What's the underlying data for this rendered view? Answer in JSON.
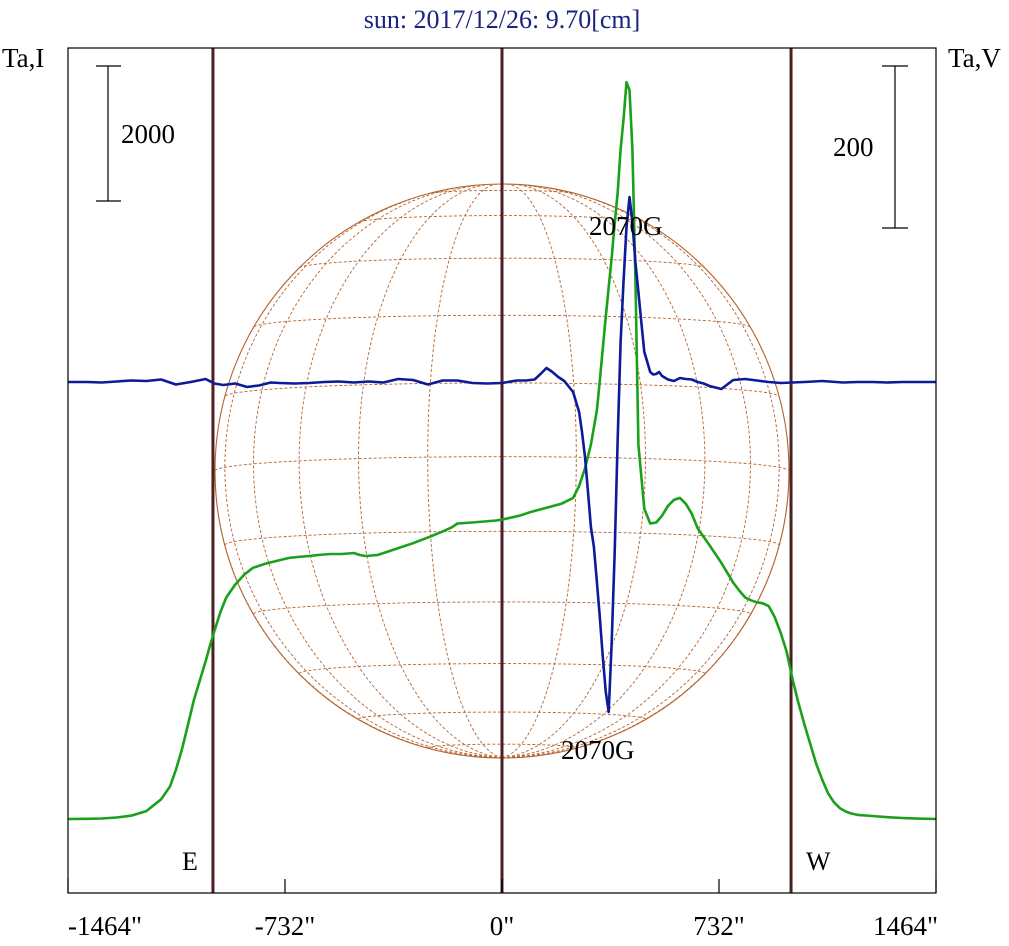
{
  "chart_data": {
    "type": "line",
    "title": "sun: 2017/12/26: 9.70[cm]",
    "title_color": "#1a237e",
    "left_axis_label": "Ta,I",
    "right_axis_label": "Ta,V",
    "left_scale_label": "2000",
    "right_scale_label": "200",
    "xlim": [
      -1464,
      1464
    ],
    "x_ticks": [
      {
        "value": -1464,
        "label": "-1464\""
      },
      {
        "value": -732,
        "label": "-732\""
      },
      {
        "value": 0,
        "label": "0\""
      },
      {
        "value": 732,
        "label": "732\""
      },
      {
        "value": 1464,
        "label": "1464\""
      }
    ],
    "limb_labels": {
      "east": "E",
      "west": "W"
    },
    "vertical_markers": [
      -975,
      0,
      975
    ],
    "annotations": [
      {
        "text": "2070G",
        "x": 450,
        "near": "stokes-v-peak"
      },
      {
        "text": "2070G",
        "x": 360,
        "near": "stokes-v-trough"
      }
    ],
    "grid": false,
    "colors": {
      "intensity": "#1aa01a",
      "polarization": "#0d1a99",
      "markers": "#4a2020",
      "disk": "#b5652e",
      "axis": "#000000"
    },
    "series": [
      {
        "key": "intensity",
        "x": [
          -1464,
          -1400,
          -1350,
          -1300,
          -1250,
          -1200,
          -1150,
          -1120,
          -1100,
          -1080,
          -1060,
          -1040,
          -1020,
          -1000,
          -985,
          -970,
          -950,
          -930,
          -900,
          -870,
          -840,
          -800,
          -760,
          -720,
          -690,
          -650,
          -620,
          -580,
          -540,
          -500,
          -480,
          -460,
          -420,
          -380,
          -340,
          -300,
          -240,
          -200,
          -170,
          -150,
          -100,
          -60,
          -20,
          0,
          30,
          60,
          100,
          150,
          200,
          240,
          260,
          280,
          300,
          320,
          330,
          340,
          350,
          360,
          370,
          380,
          390,
          400,
          410,
          420,
          430,
          440,
          450,
          460,
          480,
          500,
          520,
          540,
          560,
          580,
          600,
          620,
          640,
          660,
          700,
          740,
          780,
          800,
          820,
          840,
          860,
          880,
          900,
          920,
          940,
          960,
          980,
          1000,
          1020,
          1040,
          1060,
          1080,
          1100,
          1120,
          1140,
          1160,
          1180,
          1200,
          1250,
          1300,
          1350,
          1400,
          1464
        ],
        "y": [
          0.5,
          2,
          5,
          15,
          35,
          80,
          200,
          330,
          500,
          700,
          950,
          1200,
          1400,
          1600,
          1760,
          1910,
          2100,
          2250,
          2380,
          2480,
          2550,
          2590,
          2620,
          2650,
          2660,
          2670,
          2680,
          2690,
          2690,
          2700,
          2680,
          2670,
          2680,
          2720,
          2760,
          2800,
          2870,
          2920,
          2960,
          3000,
          3010,
          3020,
          3030,
          3040,
          3060,
          3080,
          3120,
          3160,
          3200,
          3260,
          3380,
          3560,
          3800,
          4150,
          4450,
          4780,
          5100,
          5400,
          5700,
          6050,
          6350,
          6800,
          7100,
          7480,
          7400,
          6800,
          5500,
          3800,
          3150,
          3000,
          3010,
          3080,
          3180,
          3240,
          3260,
          3200,
          3100,
          2950,
          2780,
          2600,
          2400,
          2320,
          2250,
          2220,
          2200,
          2190,
          2160,
          2050,
          1890,
          1700,
          1420,
          1180,
          960,
          760,
          560,
          400,
          260,
          170,
          110,
          75,
          55,
          42,
          30,
          18,
          10,
          4,
          0
        ]
      },
      {
        "key": "polarization",
        "x": [
          -1464,
          -1400,
          -1350,
          -1300,
          -1250,
          -1200,
          -1150,
          -1100,
          -1050,
          -1000,
          -970,
          -940,
          -900,
          -860,
          -820,
          -780,
          -750,
          -700,
          -650,
          -600,
          -550,
          -500,
          -450,
          -400,
          -350,
          -300,
          -250,
          -200,
          -150,
          -100,
          -50,
          0,
          50,
          80,
          110,
          130,
          150,
          170,
          190,
          210,
          240,
          260,
          270,
          280,
          290,
          300,
          310,
          320,
          330,
          340,
          350,
          360,
          370,
          380,
          390,
          400,
          410,
          420,
          430,
          440,
          450,
          460,
          470,
          480,
          490,
          500,
          510,
          520,
          530,
          540,
          560,
          580,
          600,
          620,
          640,
          660,
          680,
          700,
          740,
          780,
          820,
          860,
          900,
          940,
          980,
          1020,
          1080,
          1150,
          1200,
          1250,
          1300,
          1350,
          1400,
          1464
        ],
        "y": [
          0,
          0,
          -1,
          1,
          3,
          2,
          5,
          -5,
          0,
          6,
          -3,
          -6,
          -3,
          -10,
          -7,
          -1,
          -2,
          -3,
          -2,
          0,
          1,
          -1,
          1,
          -1,
          6,
          4,
          -5,
          3,
          3,
          -2,
          -3,
          -2,
          3,
          3,
          5,
          16,
          28,
          20,
          10,
          2,
          -20,
          -60,
          -100,
          -150,
          -220,
          -290,
          -330,
          -400,
          -470,
          -550,
          -620,
          -660,
          -520,
          -340,
          -120,
          80,
          200,
          310,
          370,
          320,
          240,
          180,
          120,
          60,
          40,
          20,
          15,
          16,
          20,
          12,
          5,
          2,
          8,
          6,
          5,
          0,
          -3,
          -8,
          -14,
          4,
          6,
          3,
          0,
          -2,
          -1,
          0,
          2,
          -1,
          0,
          0,
          -1,
          0,
          0,
          0
        ]
      }
    ]
  }
}
